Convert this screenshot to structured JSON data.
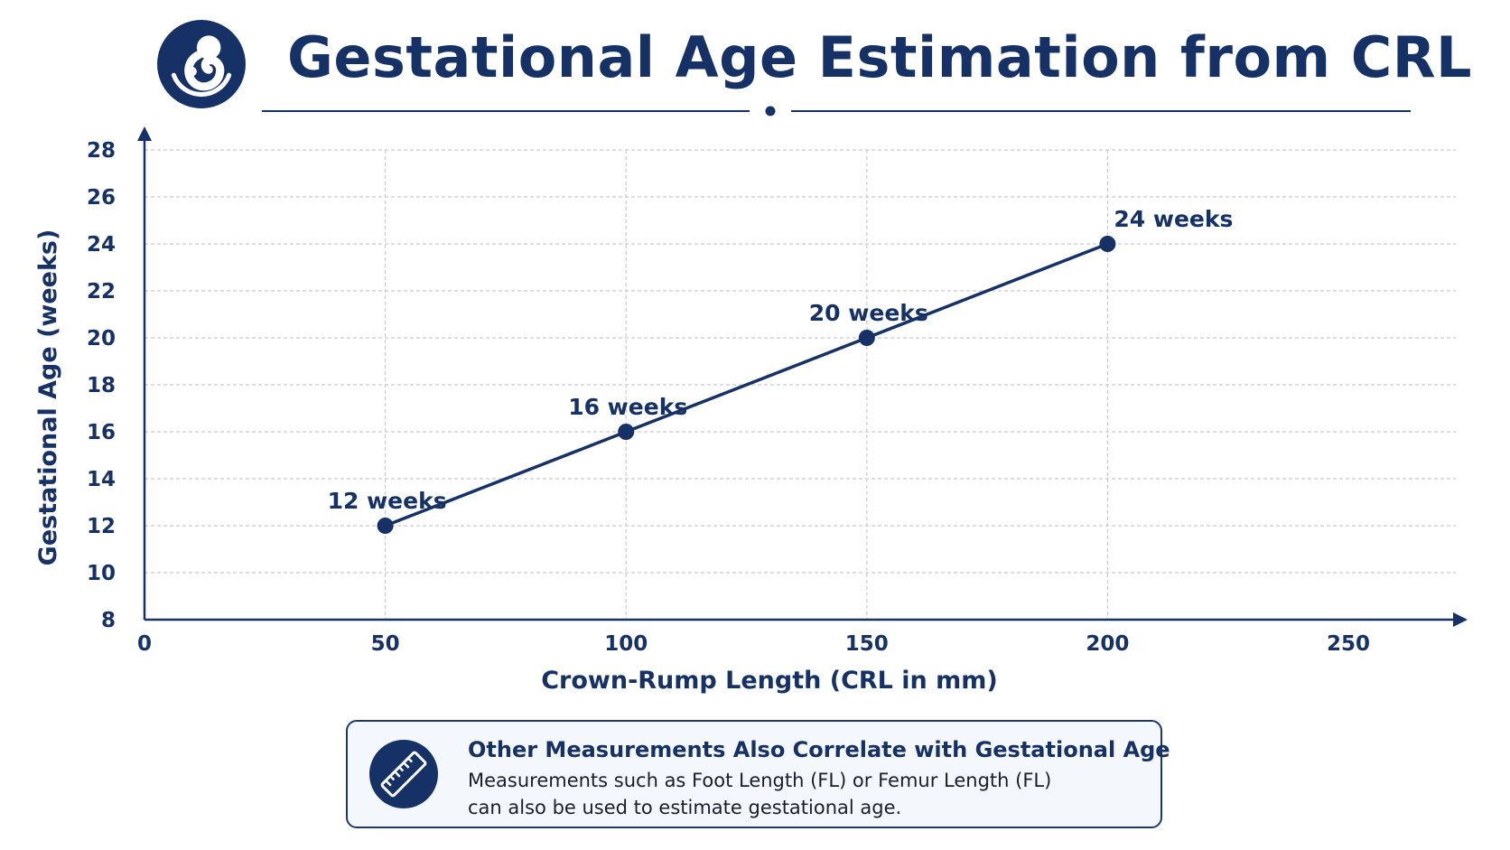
{
  "header": {
    "title": "Gestational Age Estimation from CRL",
    "logo_icon": "fetus-icon"
  },
  "colors": {
    "primary": "#163166",
    "grid": "#c9ccd3",
    "note_background": "#f4f7fc"
  },
  "chart_data": {
    "type": "line",
    "xlabel": "Crown-Rump Length (CRL in mm)",
    "ylabel": "Gestational Age (weeks)",
    "xlim": [
      0,
      250
    ],
    "ylim": [
      8,
      28
    ],
    "x_ticks": [
      0,
      50,
      100,
      150,
      200,
      250
    ],
    "y_ticks": [
      8,
      10,
      12,
      14,
      16,
      18,
      20,
      22,
      24,
      26,
      28
    ],
    "grid": true,
    "series": [
      {
        "x": [
          50,
          100,
          150,
          200
        ],
        "y": [
          12,
          16,
          20,
          24
        ],
        "labels": [
          "12 weeks",
          "16 weeks",
          "20 weeks",
          "24 weeks"
        ]
      }
    ]
  },
  "note": {
    "icon": "ruler-icon",
    "heading": "Other Measurements Also Correlate with Gestational Age",
    "body_line1": "Measurements such as Foot Length (FL) or Femur Length (FL)",
    "body_line2": "can also be used to estimate gestational age."
  }
}
